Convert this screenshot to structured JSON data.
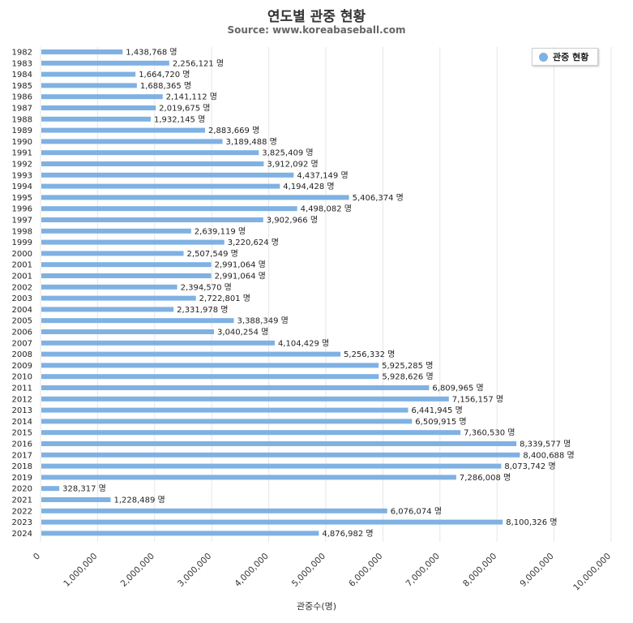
{
  "colors": {
    "bar": "#7fb1e3",
    "grid": "#e6e6e6",
    "axis_text": "#333333"
  },
  "chart_data": {
    "type": "bar",
    "orientation": "horizontal",
    "title": "연도별 관중 현황",
    "subtitle": "Source: www.koreabaseball.com",
    "xlabel": "관중수(명)",
    "ylabel": "",
    "xlim": [
      0,
      10000000
    ],
    "x_ticks": [
      "0",
      "1,000,000",
      "2,000,000",
      "3,000,000",
      "4,000,000",
      "5,000,000",
      "6,000,000",
      "7,000,000",
      "8,000,000",
      "9,000,000",
      "10,000,000"
    ],
    "grid": true,
    "legend": {
      "position": "top-right",
      "label": "관중 현황"
    },
    "value_suffix": " 명",
    "categories": [
      "1982",
      "1983",
      "1984",
      "1985",
      "1986",
      "1987",
      "1988",
      "1989",
      "1990",
      "1991",
      "1992",
      "1993",
      "1994",
      "1995",
      "1996",
      "1997",
      "1998",
      "1999",
      "2000",
      "2001",
      "2001",
      "2002",
      "2003",
      "2004",
      "2005",
      "2006",
      "2007",
      "2008",
      "2009",
      "2010",
      "2011",
      "2012",
      "2013",
      "2014",
      "2015",
      "2016",
      "2017",
      "2018",
      "2019",
      "2020",
      "2021",
      "2022",
      "2023",
      "2024"
    ],
    "values": [
      1438768,
      2256121,
      1664720,
      1688365,
      2141112,
      2019675,
      1932145,
      2883669,
      3189488,
      3825409,
      3912092,
      4437149,
      4194428,
      5406374,
      4498082,
      3902966,
      2639119,
      3220624,
      2507549,
      2991064,
      2991064,
      2394570,
      2722801,
      2331978,
      3388349,
      3040254,
      4104429,
      5256332,
      5925285,
      5928626,
      6809965,
      7156157,
      6441945,
      6509915,
      7360530,
      8339577,
      8400688,
      8073742,
      7286008,
      328317,
      1228489,
      6076074,
      8100326,
      4876982
    ]
  }
}
